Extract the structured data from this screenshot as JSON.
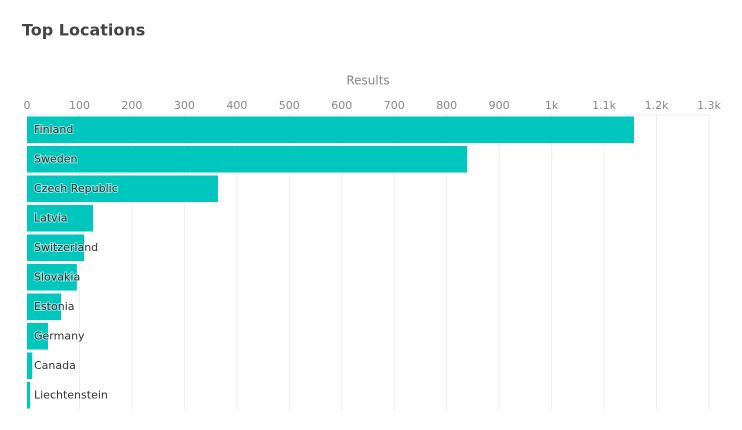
{
  "chart_data": {
    "type": "bar",
    "orientation": "horizontal",
    "title": "Top Locations",
    "x_label": "Results",
    "categories": [
      "Finland",
      "Sweden",
      "Czech Republic",
      "Latvia",
      "Switzerland",
      "Slovakia",
      "Estonia",
      "Germany",
      "Canada",
      "Liechtenstein"
    ],
    "values": [
      1157,
      839,
      364,
      126,
      109,
      95,
      65,
      40,
      10,
      6
    ],
    "color": "#00c7bd",
    "xlim": [
      0,
      1300
    ],
    "xticks": [
      0,
      100,
      200,
      300,
      400,
      500,
      600,
      700,
      800,
      900,
      {
        "value": 1000,
        "label": "1k"
      },
      {
        "value": 1100,
        "label": "1.1k"
      },
      {
        "value": 1200,
        "label": "1.2k"
      },
      {
        "value": 1300,
        "label": "1.3k"
      }
    ],
    "grid": true
  }
}
